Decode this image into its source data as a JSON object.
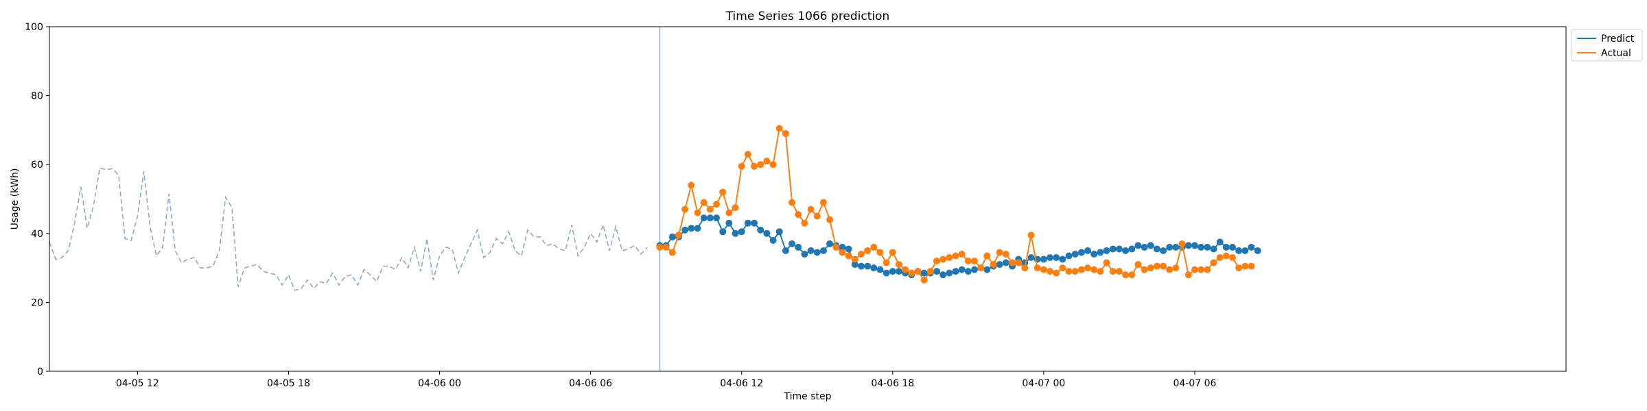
{
  "chart_data": {
    "type": "line",
    "title": "Time Series 1066 prediction",
    "xlabel": "Time step",
    "ylabel": "Usage (kWh)",
    "ylim": [
      0,
      100
    ],
    "xlim": [
      -7.0,
      113.5
    ],
    "grid": false,
    "legend_position": "top-right outside",
    "x_units": "hours since 2024-04-05 12:00 (tick labels are the printed dates)",
    "x_ticks": [
      {
        "x": 0,
        "label": "04-05 12"
      },
      {
        "x": 12,
        "label": "04-05 18"
      },
      {
        "x": 24,
        "label": "04-06 00"
      },
      {
        "x": 36,
        "label": "04-06 06"
      },
      {
        "x": 48,
        "label": "04-06 12"
      },
      {
        "x": 60,
        "label": "04-06 18"
      },
      {
        "x": 72,
        "label": "04-07 00"
      },
      {
        "x": 84,
        "label": "04-07 06"
      }
    ],
    "y_ticks": [
      0,
      20,
      40,
      60,
      80,
      100
    ],
    "vline_x": 41.5,
    "step": 0.5,
    "history": {
      "x_start": -7.0,
      "color": "#8fa8c8",
      "values": [
        37.5,
        32.5,
        33,
        35,
        43,
        53.5,
        41.5,
        48,
        59,
        58.5,
        58.8,
        57,
        38.5,
        38,
        45,
        58,
        42,
        33.5,
        36,
        51.5,
        35,
        31.5,
        32.5,
        33,
        30,
        30,
        30.5,
        35,
        50.5,
        47.5,
        24.5,
        30,
        30.5,
        31,
        29,
        28.5,
        28,
        25,
        28,
        23.5,
        24,
        26.5,
        24,
        26,
        25.5,
        28.5,
        25,
        27.5,
        28,
        25,
        29.5,
        28,
        26,
        30.5,
        30.5,
        29.5,
        33,
        30,
        36,
        29,
        38.5,
        26.5,
        33.5,
        36,
        35.5,
        28.5,
        33,
        37,
        41,
        33,
        34.5,
        38.5,
        37,
        40.5,
        35,
        33.5,
        41,
        39,
        39,
        36.5,
        37,
        35.5,
        35,
        42.5,
        33.5,
        36,
        40,
        37.5,
        42.5,
        35,
        42,
        35,
        35.5,
        36.5,
        34,
        36
      ]
    },
    "series": [
      {
        "name": "Predict",
        "color": "#1f77b4",
        "x_start": 41.5,
        "values": [
          36.5,
          36.5,
          39,
          39,
          41,
          41.5,
          41.5,
          44.5,
          44.5,
          44.5,
          40.5,
          43,
          40,
          40.5,
          43,
          43,
          41,
          40,
          38,
          40.5,
          35,
          37,
          36,
          34,
          35,
          34.5,
          35,
          37,
          36.5,
          36,
          35.5,
          31,
          30.5,
          30.5,
          30,
          29.5,
          28.5,
          29,
          29,
          28.5,
          28,
          29,
          28.5,
          28.5,
          29,
          28,
          28.5,
          29,
          29.5,
          29,
          29.5,
          30,
          29.5,
          30.5,
          31,
          31.5,
          30.5,
          32.5,
          31.5,
          33,
          32.5,
          32.5,
          33,
          33,
          32.5,
          33.5,
          34,
          34.5,
          35,
          34,
          34.5,
          35,
          35.5,
          35.5,
          35,
          35.5,
          36.5,
          36,
          36.5,
          35.5,
          35,
          36,
          36,
          36,
          36.5,
          36.5,
          36,
          36,
          35.5,
          37.5,
          36,
          36,
          35,
          35,
          36,
          35
        ]
      },
      {
        "name": "Actual",
        "color": "#ff7f0e",
        "x_start": 41.5,
        "values": [
          36,
          36,
          34.5,
          39.5,
          47,
          54,
          46,
          49,
          47,
          48.5,
          52,
          46,
          47.5,
          59.5,
          63,
          59.5,
          60,
          61,
          60,
          70.5,
          69,
          49,
          45.5,
          43,
          47,
          45,
          49,
          44,
          36,
          34.5,
          33.5,
          32.5,
          34,
          35,
          36,
          34.5,
          31.5,
          34.5,
          31,
          29.5,
          28.5,
          29,
          26.5,
          29,
          32,
          32.5,
          33,
          33.5,
          34,
          32,
          32,
          30,
          33.5,
          31,
          34.5,
          34,
          31.5,
          31.5,
          30,
          39.5,
          30,
          29.5,
          29,
          28.5,
          30,
          29,
          29,
          29.5,
          30,
          29.5,
          29,
          31.5,
          29,
          29,
          28,
          28,
          31,
          29.5,
          30,
          30.5,
          30.5,
          29.5,
          30,
          37,
          28,
          29.5,
          29.5,
          29.5,
          31.5,
          33,
          33.5,
          33,
          30,
          30.5,
          30.5
        ]
      }
    ]
  }
}
